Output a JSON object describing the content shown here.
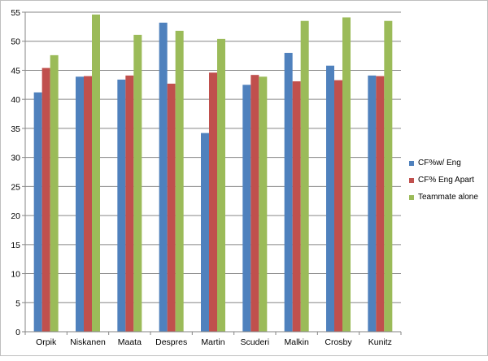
{
  "chart_data": {
    "type": "bar",
    "categories": [
      "Orpik",
      "Niskanen",
      "Maata",
      "Despres",
      "Martin",
      "Scuderi",
      "Malkin",
      "Crosby",
      "Kunitz"
    ],
    "series": [
      {
        "name": "CF%w/ Eng",
        "color": "#4f81bd",
        "values": [
          41.2,
          43.9,
          43.4,
          53.2,
          34.2,
          42.5,
          48.0,
          45.8,
          44.1
        ]
      },
      {
        "name": "CF% Eng Apart",
        "color": "#c0504d",
        "values": [
          45.4,
          44.0,
          44.1,
          42.7,
          44.6,
          44.2,
          43.1,
          43.3,
          44.0
        ]
      },
      {
        "name": "Teammate alone",
        "color": "#9bbb59",
        "values": [
          47.6,
          54.6,
          51.1,
          51.8,
          50.4,
          43.9,
          53.5,
          54.1,
          53.5
        ]
      }
    ],
    "yticks": [
      "0",
      "5",
      "10",
      "15",
      "20",
      "25",
      "30",
      "35",
      "40",
      "45",
      "50",
      "55"
    ],
    "ylim": [
      0,
      55
    ],
    "grid": true,
    "legend": "right",
    "title": "",
    "xlabel": "",
    "ylabel": ""
  }
}
